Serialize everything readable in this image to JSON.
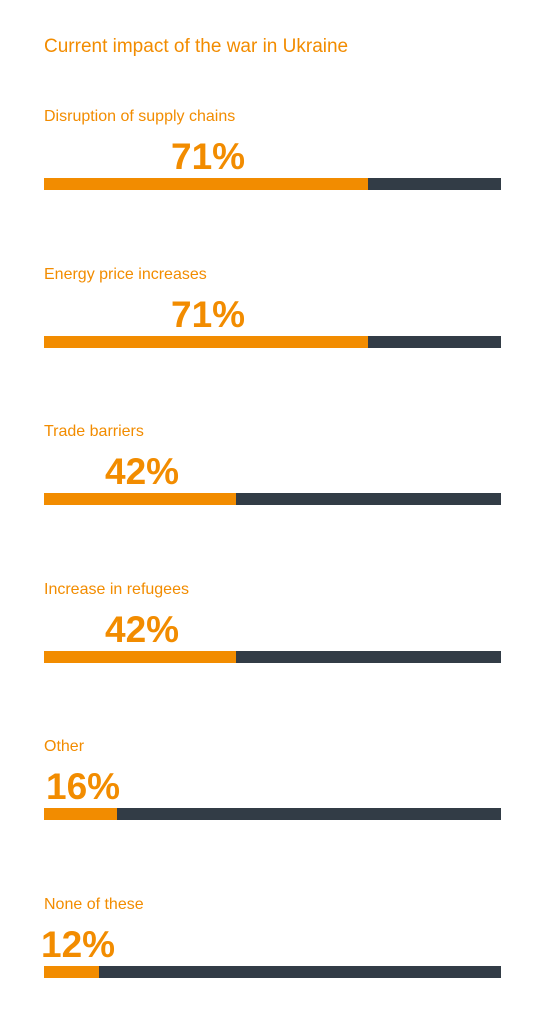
{
  "chart_data": {
    "type": "bar",
    "title": "Current impact of the war in Ukraine",
    "categories": [
      "Disruption of supply chains",
      "Energy price increases",
      "Trade barriers",
      "Increase in refugees",
      "Other",
      "None of these"
    ],
    "values": [
      71,
      71,
      42,
      42,
      16,
      12
    ],
    "value_labels": [
      "71%",
      "71%",
      "42%",
      "42%",
      "16%",
      "12%"
    ],
    "ylim": [
      0,
      100
    ],
    "grid": false
  },
  "colors": {
    "accent": "#f28c00",
    "track": "#323c46"
  }
}
